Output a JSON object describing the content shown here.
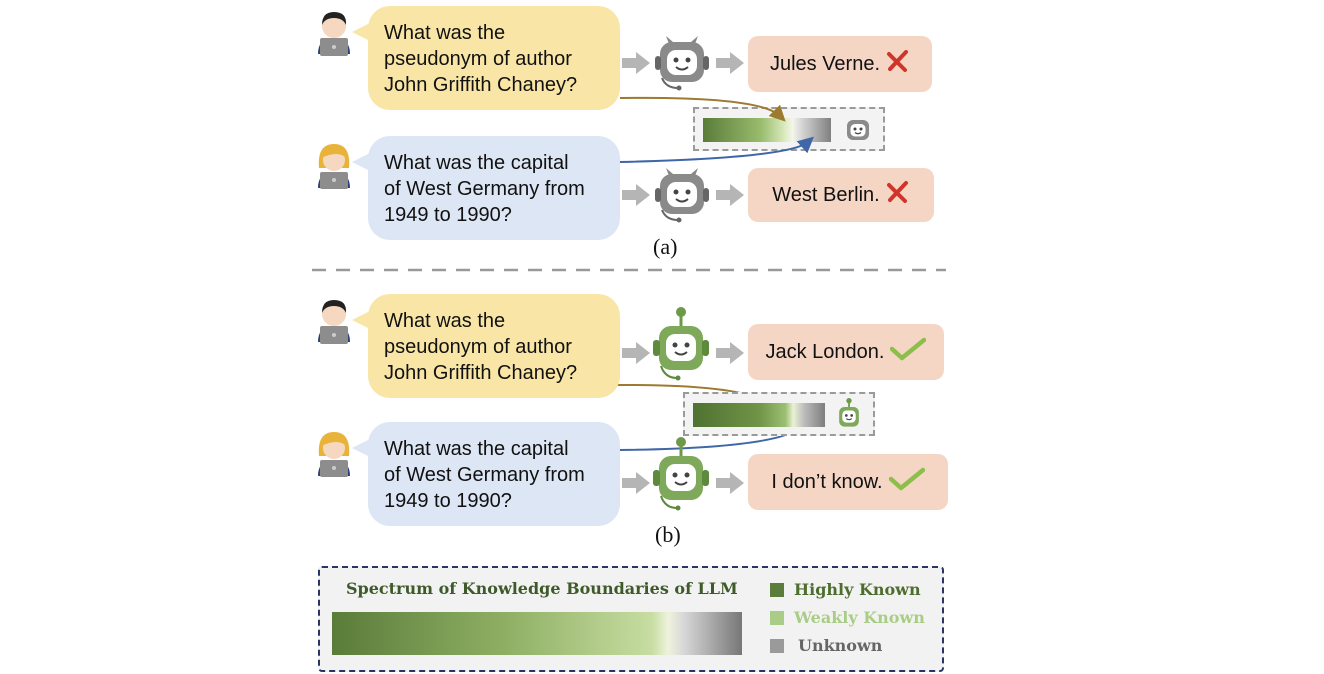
{
  "panel_a": {
    "caption": "(a)",
    "q1": {
      "lines": [
        "What was the",
        "pseudonym of author",
        "John Griffith Chaney?"
      ]
    },
    "q2": {
      "lines": [
        "What was the capital",
        "of West Germany from",
        "1949 to 1990?"
      ]
    },
    "a1": {
      "text": "Jules Verne.",
      "status": "wrong"
    },
    "a2": {
      "text": "West Berlin.",
      "status": "wrong"
    }
  },
  "panel_b": {
    "caption": "(b)",
    "q1": {
      "lines": [
        "What was the",
        "pseudonym of author",
        "John Griffith Chaney?"
      ]
    },
    "q2": {
      "lines": [
        "What was the capital",
        "of West Germany from",
        "1949 to 1990?"
      ]
    },
    "a1": {
      "text": "Jack London.",
      "status": "correct"
    },
    "a2": {
      "text": "I don’t know.",
      "status": "correct"
    }
  },
  "legend": {
    "title": "Spectrum of Knowledge Boundaries of LLM",
    "items": [
      {
        "label": "Highly Known",
        "color": "#5b7d3c"
      },
      {
        "label": "Weakly Known",
        "color": "#a9cd86"
      },
      {
        "label": "Unknown",
        "color": "#9a9a9a"
      }
    ]
  },
  "colors": {
    "question_yellow": "#f9e6a6",
    "question_blue": "#dde6f4",
    "answer_bg": "#f5d6c4",
    "cross": "#d0352b",
    "check": "#8cbf4a",
    "arrow_brown": "#9c7a2e",
    "arrow_blue": "#3f67a8",
    "robot_gray": "#8a8a8a",
    "robot_green": "#6c9a48"
  },
  "icons": [
    "user-man-laptop-icon",
    "user-woman-laptop-icon",
    "robot-icon",
    "right-arrow-icon",
    "cross-icon",
    "check-icon"
  ]
}
